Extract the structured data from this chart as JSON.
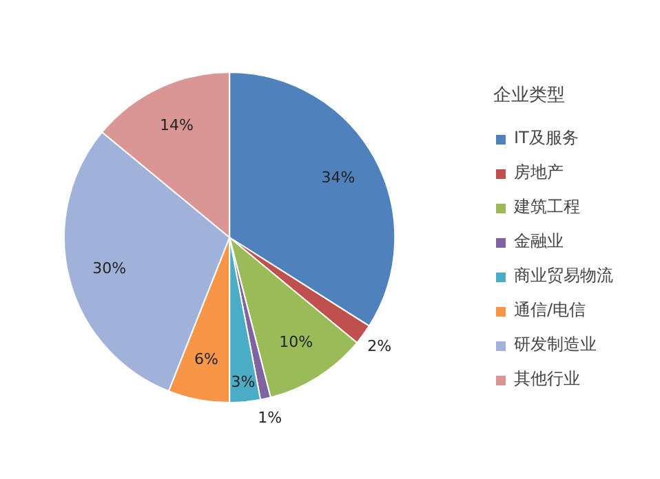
{
  "chart_data": {
    "type": "pie",
    "legend_title": "企业类型",
    "legend": "right",
    "categories": [
      "IT及服务",
      "房地产",
      "建筑工程",
      "金融业",
      "商业贸易物流",
      "通信/电信",
      "研发制造业",
      "其他行业"
    ],
    "values": [
      34,
      2,
      10,
      1,
      3,
      6,
      30,
      14
    ],
    "value_labels": [
      "34%",
      "2%",
      "10%",
      "1%",
      "3%",
      "6%",
      "30%",
      "14%"
    ],
    "colors": [
      "#4f81bd",
      "#c0504d",
      "#9bbb59",
      "#8064a2",
      "#4bacc6",
      "#f79646",
      "#a0b2da",
      "#d99694"
    ]
  }
}
